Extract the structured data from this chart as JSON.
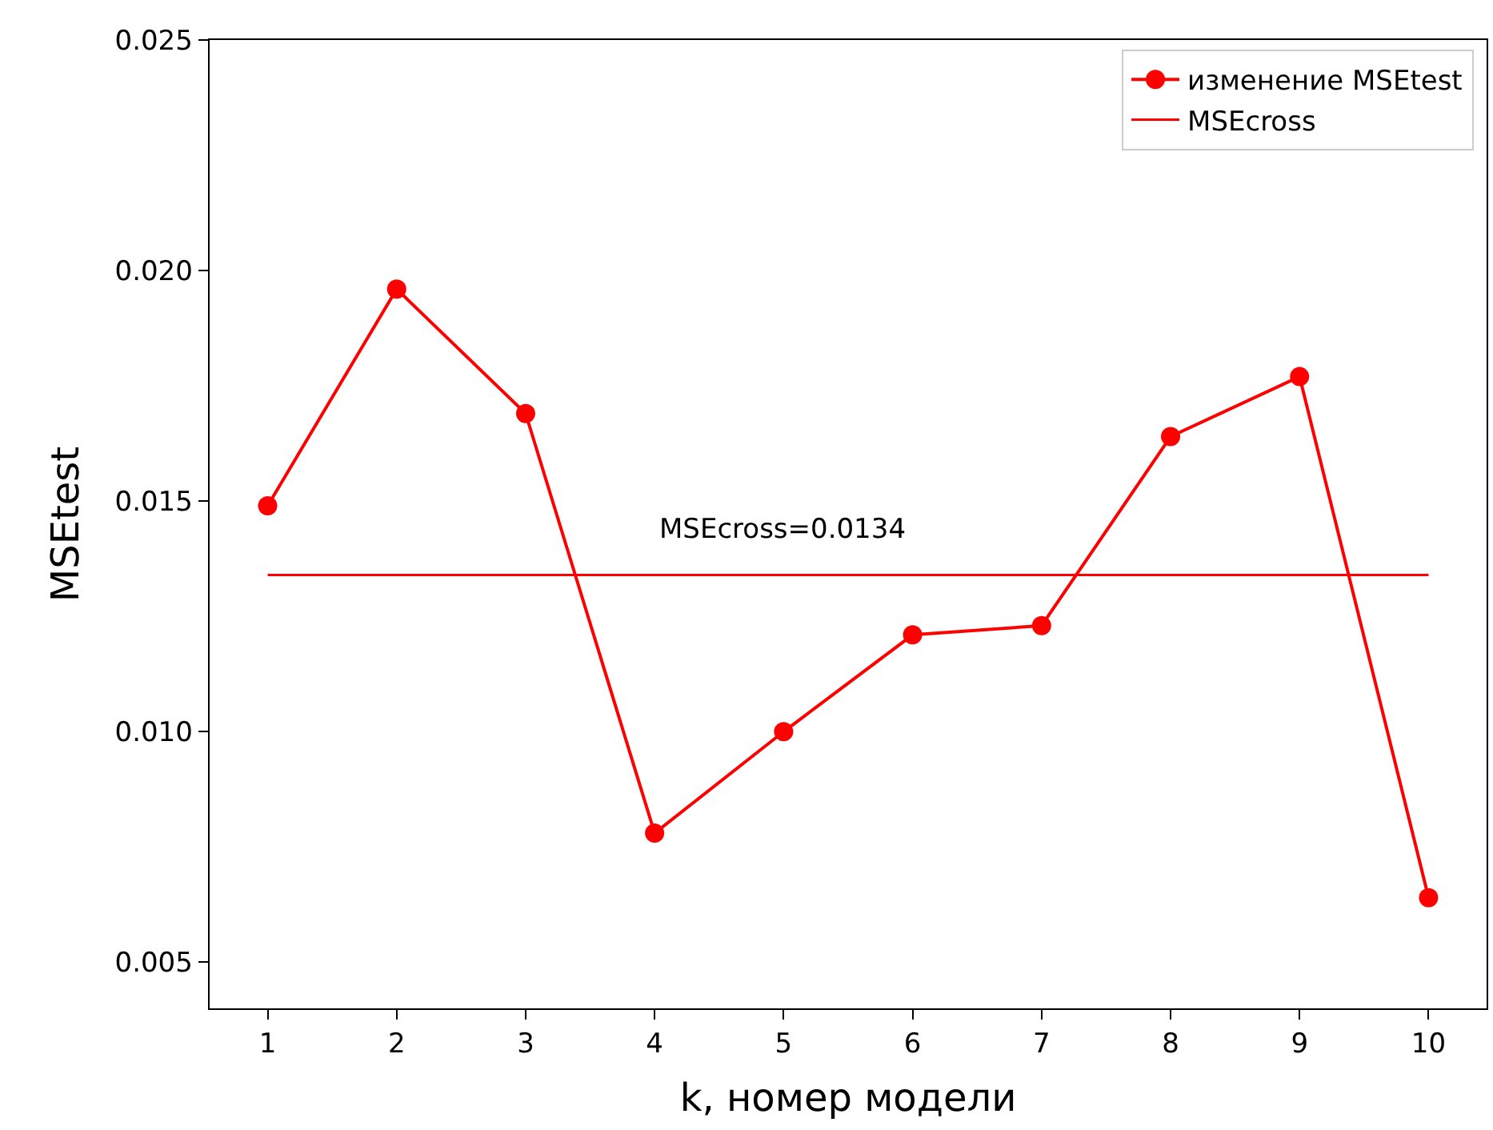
{
  "chart_data": {
    "type": "line",
    "xlabel": "k, номер модели",
    "ylabel": "MSEtest",
    "x": [
      1,
      2,
      3,
      4,
      5,
      6,
      7,
      8,
      9,
      10
    ],
    "series": [
      {
        "name": "изменение MSEtest",
        "color": "#ff0000",
        "marker": "circle",
        "values": [
          0.0149,
          0.0196,
          0.0169,
          0.0078,
          0.01,
          0.0121,
          0.0123,
          0.0164,
          0.0177,
          0.0064
        ]
      },
      {
        "name": "MSEcross",
        "color": "#ff0000",
        "marker": "none",
        "x": [
          1,
          10
        ],
        "values": [
          0.0134,
          0.0134
        ]
      }
    ],
    "annotations": [
      "MSEcross=0.0134"
    ],
    "xlim": [
      0.55,
      10.45
    ],
    "xticks": [
      1,
      2,
      3,
      4,
      5,
      6,
      7,
      8,
      9,
      10
    ],
    "ylim": [
      0.004,
      0.025
    ],
    "yticks": [
      {
        "value": 0.005,
        "label": "0.005"
      },
      {
        "value": 0.01,
        "label": "0.010"
      },
      {
        "value": 0.015,
        "label": "0.015"
      },
      {
        "value": 0.02,
        "label": "0.020"
      },
      {
        "value": 0.025,
        "label": "0.025"
      }
    ],
    "legend": "top right"
  }
}
